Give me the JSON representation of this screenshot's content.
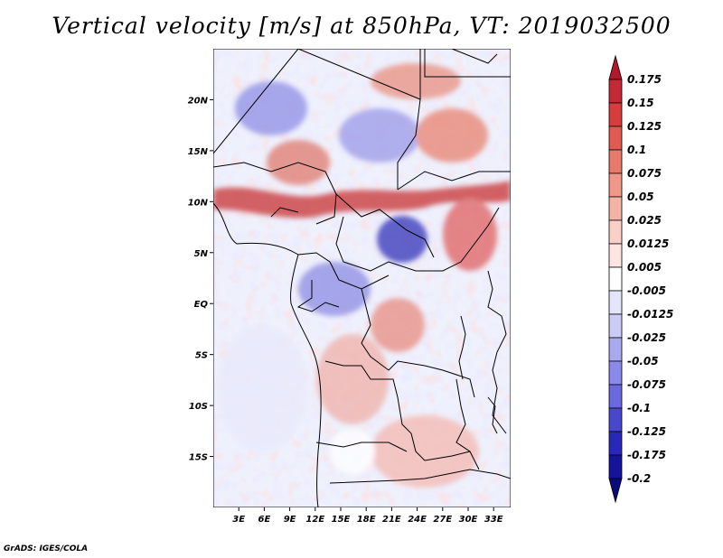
{
  "title": "Vertical velocity [m/s] at 850hPa, VT: 2019032500",
  "footer": "GrADS: IGES/COLA",
  "map": {
    "lon_range": [
      0,
      35
    ],
    "lat_range": [
      -20,
      25
    ],
    "lat_ticks": [
      {
        "value": 20,
        "label": "20N"
      },
      {
        "value": 15,
        "label": "15N"
      },
      {
        "value": 10,
        "label": "10N"
      },
      {
        "value": 5,
        "label": "5N"
      },
      {
        "value": 0,
        "label": "EQ"
      },
      {
        "value": -5,
        "label": "5S"
      },
      {
        "value": -10,
        "label": "10S"
      },
      {
        "value": -15,
        "label": "15S"
      }
    ],
    "lon_ticks": [
      {
        "value": 3,
        "label": "3E"
      },
      {
        "value": 6,
        "label": "6E"
      },
      {
        "value": 9,
        "label": "9E"
      },
      {
        "value": 12,
        "label": "12E"
      },
      {
        "value": 15,
        "label": "15E"
      },
      {
        "value": 18,
        "label": "18E"
      },
      {
        "value": 21,
        "label": "21E"
      },
      {
        "value": 24,
        "label": "24E"
      },
      {
        "value": 27,
        "label": "27E"
      },
      {
        "value": 30,
        "label": "30E"
      },
      {
        "value": 33,
        "label": "33E"
      }
    ]
  },
  "colorbar": {
    "labels": [
      "0.175",
      "0.15",
      "0.125",
      "0.1",
      "0.075",
      "0.05",
      "0.025",
      "0.0125",
      "0.005",
      "-0.005",
      "-0.0125",
      "-0.025",
      "-0.05",
      "-0.075",
      "-0.1",
      "-0.125",
      "-0.175",
      "-0.2"
    ],
    "colors": [
      "#b2182b",
      "#c42a35",
      "#d63e3e",
      "#e05a52",
      "#e87a6c",
      "#f09888",
      "#f5b3a6",
      "#f9cfc6",
      "#fde6e1",
      "#ffffff",
      "#e4e4fb",
      "#cbcbf6",
      "#a9a9f0",
      "#8a8ae8",
      "#6a6ade",
      "#4848cf",
      "#2828bb",
      "#14149a",
      "#0a0a7a"
    ]
  }
}
